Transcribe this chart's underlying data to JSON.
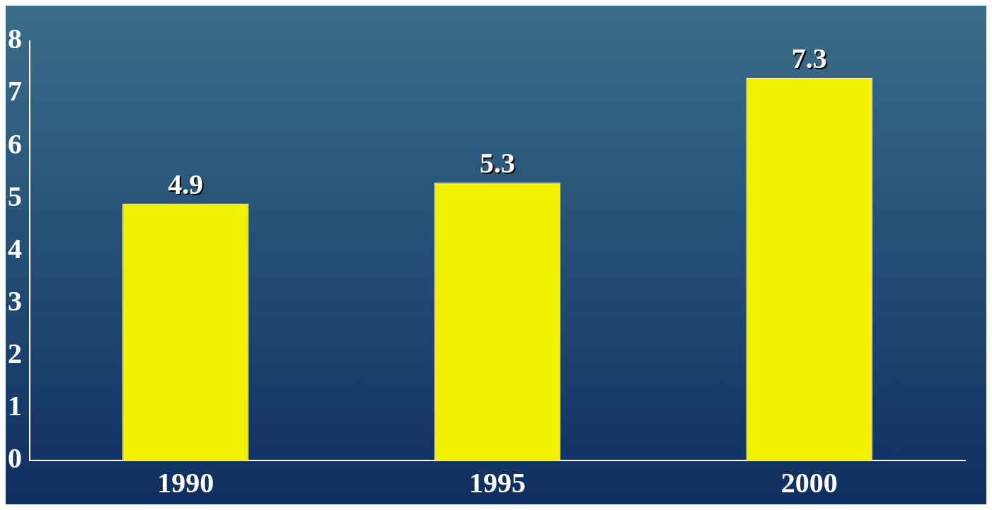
{
  "chart_data": {
    "type": "bar",
    "categories": [
      "1990",
      "1995",
      "2000"
    ],
    "values": [
      4.9,
      5.3,
      7.3
    ],
    "color": "#f2f200",
    "ylim": [
      0,
      8
    ],
    "yticks": [
      0,
      1,
      2,
      3,
      4,
      5,
      6,
      7,
      8
    ],
    "grid": false,
    "legend": false,
    "data_labels": true
  }
}
